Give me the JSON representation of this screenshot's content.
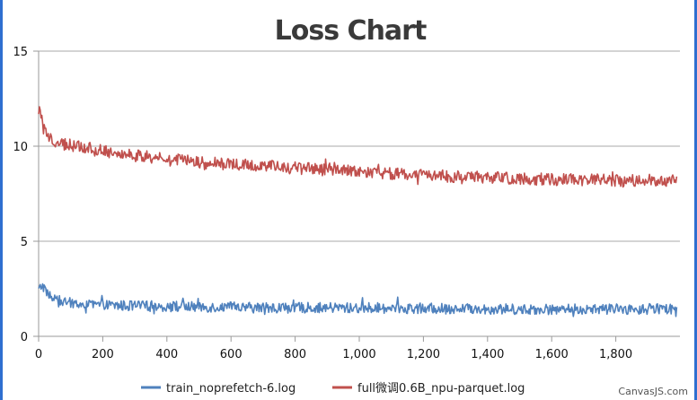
{
  "chart_data": {
    "type": "line",
    "title": "Loss Chart",
    "xlabel": "",
    "ylabel": "",
    "xlim": [
      0,
      2000
    ],
    "ylim": [
      0,
      15
    ],
    "x_ticks": [
      0,
      200,
      400,
      600,
      800,
      1000,
      1200,
      1400,
      1600,
      1800
    ],
    "x_tick_labels": [
      "0",
      "200",
      "400",
      "600",
      "800",
      "1,000",
      "1,200",
      "1,400",
      "1,600",
      "1,800"
    ],
    "y_ticks": [
      0,
      5,
      10,
      15
    ],
    "y_tick_labels": [
      "0",
      "5",
      "10",
      "15"
    ],
    "grid": "horizontal",
    "legend_position": "bottom",
    "series": [
      {
        "name": "train_noprefetch-6.log",
        "color": "#4f81bd",
        "x": [
          0,
          10,
          20,
          40,
          80,
          150,
          300,
          500,
          700,
          1000,
          1300,
          1600,
          1800,
          1990
        ],
        "values": [
          2.4,
          2.7,
          2.5,
          2.0,
          1.8,
          1.65,
          1.6,
          1.55,
          1.5,
          1.5,
          1.45,
          1.42,
          1.42,
          1.45
        ]
      },
      {
        "name": "full微调0.6B_npu-parquet.log",
        "color": "#c0504d",
        "x": [
          0,
          10,
          20,
          40,
          80,
          150,
          300,
          500,
          700,
          1000,
          1300,
          1600,
          1800,
          1990
        ],
        "values": [
          12.0,
          11.6,
          10.7,
          10.3,
          10.1,
          9.9,
          9.5,
          9.15,
          8.95,
          8.65,
          8.4,
          8.25,
          8.2,
          8.2
        ]
      }
    ],
    "credit": "CanvasJS.com"
  }
}
